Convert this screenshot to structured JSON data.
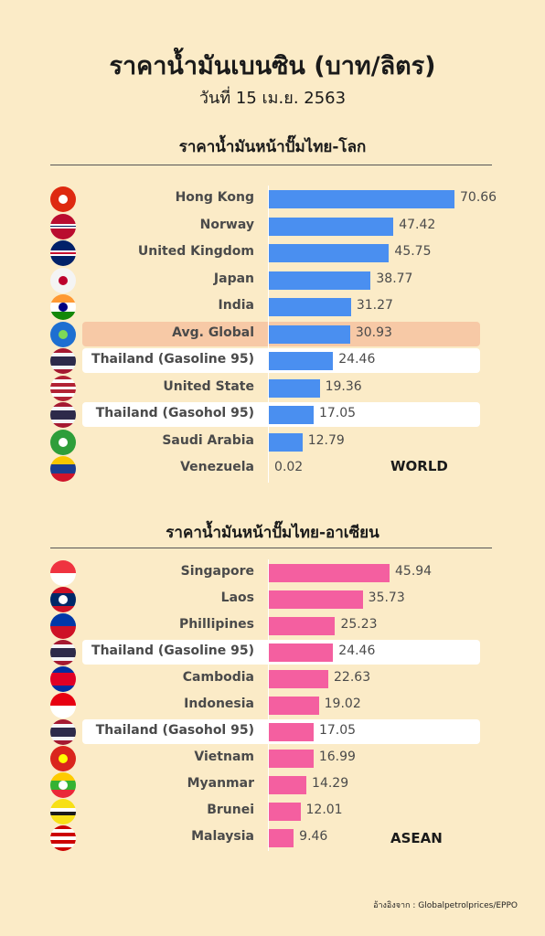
{
  "title": "ราคาน้ำมันเบนซิน (บาท/ลิตร)",
  "subtitle": "วันที่ 15 เม.ย. 2563",
  "source": "อ้างอิงจาก : Globalpetrolprices/EPPO",
  "colors": {
    "background": "#fbebc7",
    "world_bar": "#4a8ff0",
    "asean_bar": "#f45fa0",
    "avg_highlight": "#f7c9a6",
    "thai_highlight": "#ffffff"
  },
  "chart_data": [
    {
      "type": "bar",
      "title": "ราคาน้ำมันหน้าปั๊มไทย-โลก",
      "tag": "WORLD",
      "categories": [
        "Hong Kong",
        "Norway",
        "United Kingdom",
        "Japan",
        "India",
        "Avg. Global",
        "Thailand (Gasoline 95)",
        "United State",
        "Thailand (Gasohol 95)",
        "Saudi Arabia",
        "Venezuela"
      ],
      "values": [
        70.66,
        47.42,
        45.75,
        38.77,
        31.27,
        30.93,
        24.46,
        19.36,
        17.05,
        12.79,
        0.02
      ],
      "value_labels": [
        "70.66",
        "47.42",
        "45.75",
        "38.77",
        "31.27",
        "30.93",
        "24.46",
        "19.36",
        "17.05",
        "12.79",
        "0.02"
      ],
      "highlights": [
        "",
        "",
        "",
        "",
        "",
        "avg",
        "thai",
        "",
        "thai",
        "",
        ""
      ],
      "flags": [
        "hong-kong-flag-icon",
        "norway-flag-icon",
        "uk-flag-icon",
        "japan-flag-icon",
        "india-flag-icon",
        "globe-icon",
        "thailand-flag-icon",
        "usa-flag-icon",
        "thailand-flag-icon",
        "saudi-arabia-flag-icon",
        "venezuela-flag-icon"
      ]
    },
    {
      "type": "bar",
      "title": "ราคาน้ำมันหน้าปั๊มไทย-อาเซียน",
      "tag": "ASEAN",
      "categories": [
        "Singapore",
        "Laos",
        "Phillipines",
        "Thailand (Gasoline 95)",
        "Cambodia",
        "Indonesia",
        "Thailand (Gasohol 95)",
        "Vietnam",
        "Myanmar",
        "Brunei",
        "Malaysia"
      ],
      "values": [
        45.94,
        35.73,
        25.23,
        24.46,
        22.63,
        19.02,
        17.05,
        16.99,
        14.29,
        12.01,
        9.46
      ],
      "value_labels": [
        "45.94",
        "35.73",
        "25.23",
        "24.46",
        "22.63",
        "19.02",
        "17.05",
        "16.99",
        "14.29",
        "12.01",
        "9.46"
      ],
      "highlights": [
        "",
        "",
        "",
        "thai",
        "",
        "",
        "thai",
        "",
        "",
        "",
        ""
      ],
      "flags": [
        "singapore-flag-icon",
        "laos-flag-icon",
        "philippines-flag-icon",
        "thailand-flag-icon",
        "cambodia-flag-icon",
        "indonesia-flag-icon",
        "thailand-flag-icon",
        "vietnam-flag-icon",
        "myanmar-flag-icon",
        "brunei-flag-icon",
        "malaysia-flag-icon"
      ]
    }
  ]
}
